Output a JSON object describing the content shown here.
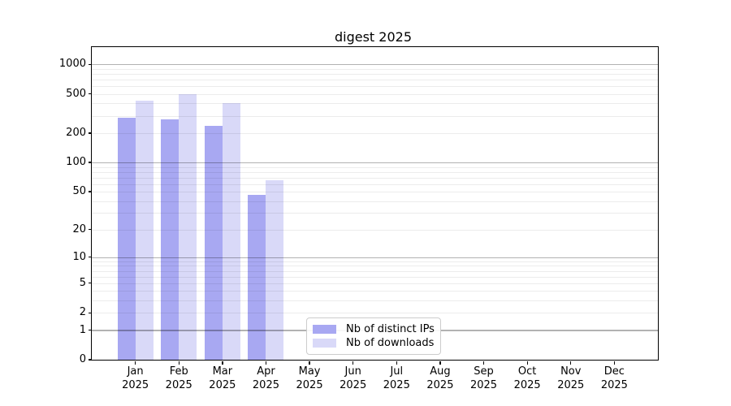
{
  "chart_data": {
    "type": "bar",
    "title": "digest 2025",
    "x_axis": {
      "categories": [
        "Jan",
        "Feb",
        "Mar",
        "Apr",
        "May",
        "Jun",
        "Jul",
        "Aug",
        "Sep",
        "Oct",
        "Nov",
        "Dec"
      ],
      "sublabel": "2025"
    },
    "y_axis": {
      "scale": "log1p",
      "min": 0,
      "max": 1500,
      "tick_labels": [
        0,
        1,
        2,
        5,
        10,
        20,
        50,
        100,
        200,
        500,
        1000
      ],
      "major_gridlines_at": [
        1,
        10,
        100,
        1000
      ]
    },
    "series": [
      {
        "name": "Nb of distinct IPs",
        "color": "#a8a8f2",
        "values": [
          285,
          275,
          235,
          46,
          0,
          0,
          0,
          0,
          0,
          0,
          0,
          0
        ]
      },
      {
        "name": "Nb of downloads",
        "color": "#d9d9f8",
        "values": [
          430,
          500,
          400,
          65,
          0,
          0,
          0,
          0,
          0,
          0,
          0,
          0
        ]
      }
    ],
    "legend": {
      "position": "lower-center-left",
      "entries": [
        "Nb of distinct IPs",
        "Nb of downloads"
      ]
    },
    "grid": {
      "major_color": "rgba(0,0,0,0.30)",
      "minor_color": "rgba(0,0,0,0.075)"
    },
    "frame_color": "#000000",
    "background_color": "#ffffff"
  }
}
